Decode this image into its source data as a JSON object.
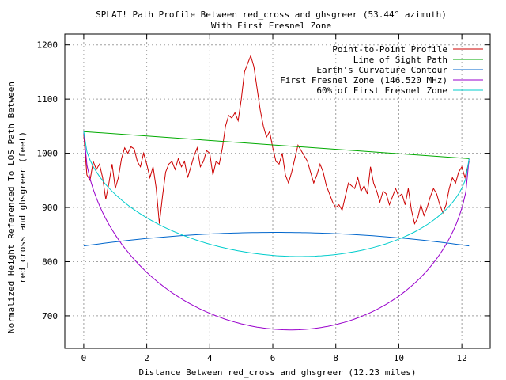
{
  "chart_data": {
    "type": "line",
    "title": "SPLAT! Path Profile Between red_cross and ghsgreer (53.44° azimuth)",
    "subtitle": "With First Fresnel Zone",
    "xlabel": "Distance Between red_cross and ghsgreer (12.23 miles)",
    "ylabel_line1": "Normalized Height Referenced To LOS Path Between",
    "ylabel_line2": "red_cross and ghsgreer (feet)",
    "xlim": [
      -0.6,
      12.9
    ],
    "ylim": [
      640,
      1220
    ],
    "xticks": [
      0,
      2,
      4,
      6,
      8,
      10,
      12
    ],
    "yticks": [
      700,
      800,
      900,
      1000,
      1100,
      1200
    ],
    "grid": true,
    "legend_position": "top-right",
    "series": [
      {
        "name": "Point-to-Point Profile",
        "color": "#cc0000",
        "kind": "profile",
        "x": [
          0,
          0.1,
          0.2,
          0.3,
          0.4,
          0.5,
          0.6,
          0.7,
          0.8,
          0.9,
          1.0,
          1.1,
          1.2,
          1.3,
          1.4,
          1.5,
          1.6,
          1.7,
          1.8,
          1.9,
          2.0,
          2.1,
          2.2,
          2.3,
          2.4,
          2.5,
          2.6,
          2.7,
          2.8,
          2.9,
          3.0,
          3.1,
          3.2,
          3.3,
          3.4,
          3.5,
          3.6,
          3.7,
          3.8,
          3.9,
          4.0,
          4.1,
          4.2,
          4.3,
          4.4,
          4.5,
          4.6,
          4.7,
          4.8,
          4.9,
          5.0,
          5.1,
          5.2,
          5.3,
          5.4,
          5.5,
          5.6,
          5.7,
          5.8,
          5.9,
          6.0,
          6.1,
          6.2,
          6.3,
          6.4,
          6.5,
          6.6,
          6.7,
          6.8,
          6.9,
          7.0,
          7.1,
          7.2,
          7.3,
          7.4,
          7.5,
          7.6,
          7.7,
          7.8,
          7.9,
          8.0,
          8.1,
          8.2,
          8.3,
          8.4,
          8.5,
          8.6,
          8.7,
          8.8,
          8.9,
          9.0,
          9.1,
          9.2,
          9.3,
          9.4,
          9.5,
          9.6,
          9.7,
          9.8,
          9.9,
          10.0,
          10.1,
          10.2,
          10.3,
          10.4,
          10.5,
          10.6,
          10.7,
          10.8,
          10.9,
          11.0,
          11.1,
          11.2,
          11.3,
          11.4,
          11.5,
          11.6,
          11.7,
          11.8,
          11.9,
          12.0,
          12.1,
          12.23
        ],
        "y": [
          1035,
          960,
          950,
          985,
          970,
          980,
          955,
          915,
          945,
          980,
          935,
          955,
          990,
          1010,
          1000,
          1012,
          1008,
          985,
          975,
          1000,
          980,
          955,
          975,
          935,
          870,
          920,
          965,
          980,
          985,
          970,
          990,
          975,
          985,
          955,
          975,
          995,
          1010,
          975,
          985,
          1005,
          1000,
          960,
          985,
          980,
          1010,
          1050,
          1070,
          1065,
          1075,
          1060,
          1100,
          1150,
          1165,
          1180,
          1160,
          1120,
          1080,
          1050,
          1030,
          1040,
          1010,
          985,
          980,
          1000,
          960,
          945,
          965,
          990,
          1015,
          1005,
          995,
          985,
          965,
          945,
          960,
          980,
          965,
          940,
          925,
          910,
          900,
          905,
          895,
          920,
          945,
          940,
          935,
          955,
          930,
          940,
          925,
          975,
          945,
          930,
          910,
          930,
          925,
          905,
          920,
          935,
          920,
          925,
          905,
          935,
          895,
          870,
          880,
          905,
          885,
          900,
          920,
          935,
          925,
          905,
          890,
          905,
          935,
          955,
          945,
          965,
          975,
          955,
          985
        ]
      },
      {
        "name": "Line of Sight Path",
        "color": "#00aa00",
        "kind": "los",
        "x": [
          0,
          12.23
        ],
        "y": [
          1040,
          990
        ]
      },
      {
        "name": "Earth's Curvature Contour",
        "color": "#0066cc",
        "kind": "curvature",
        "x_end": 12.23,
        "y_end": 829,
        "y_peak": 854
      },
      {
        "name": "First Fresnel Zone (146.520 MHz)",
        "color": "#9900cc",
        "kind": "fresnel",
        "fraction": 1.0,
        "depth": 340
      },
      {
        "name": "60% of First Fresnel Zone",
        "color": "#00cccc",
        "kind": "fresnel",
        "fraction": 0.6,
        "depth": 340
      }
    ]
  }
}
